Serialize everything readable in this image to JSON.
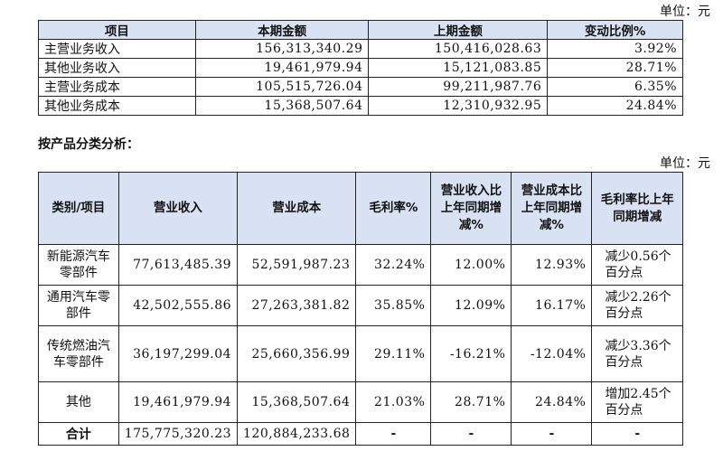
{
  "unit_label": "单位：元",
  "table1": {
    "headers": [
      "项目",
      "本期金额",
      "上期金额",
      "变动比例%"
    ],
    "rows": [
      [
        "主营业务收入",
        "156,313,340.29",
        "150,416,028.63",
        "3.92%"
      ],
      [
        "其他业务收入",
        "19,461,979.94",
        "15,121,083.85",
        "28.71%"
      ],
      [
        "主营业务成本",
        "105,515,726.04",
        "99,211,987.76",
        "6.35%"
      ],
      [
        "其他业务成本",
        "15,368,507.64",
        "12,310,932.95",
        "24.84%"
      ]
    ]
  },
  "section_title": "按产品分类分析：",
  "table2": {
    "headers": [
      "类别/项目",
      "营业收入",
      "营业成本",
      "毛利率%",
      "营业收入比上年同期增减%",
      "营业成本比上年同期增减%",
      "毛利率比上年同期增减"
    ],
    "rows": [
      [
        "新能源汽车零部件",
        "77,613,485.39",
        "52,591,987.23",
        "32.24%",
        "12.00%",
        "12.93%",
        "减少0.56个百分点"
      ],
      [
        "通用汽车零部件",
        "42,502,555.86",
        "27,263,381.82",
        "35.85%",
        "12.09%",
        "16.17%",
        "减少2.26个百分点"
      ],
      [
        "传统燃油汽车零部件",
        "36,197,299.04",
        "25,660,356.99",
        "29.11%",
        "-16.21%",
        "-12.04%",
        "减少3.36个百分点"
      ],
      [
        "其他",
        "19,461,979.94",
        "15,368,507.64",
        "21.03%",
        "28.71%",
        "24.84%",
        "增加2.45个百分点"
      ]
    ],
    "total": [
      "合计",
      "175,775,320.23",
      "120,884,233.68",
      "-",
      "-",
      "-",
      "-"
    ]
  }
}
